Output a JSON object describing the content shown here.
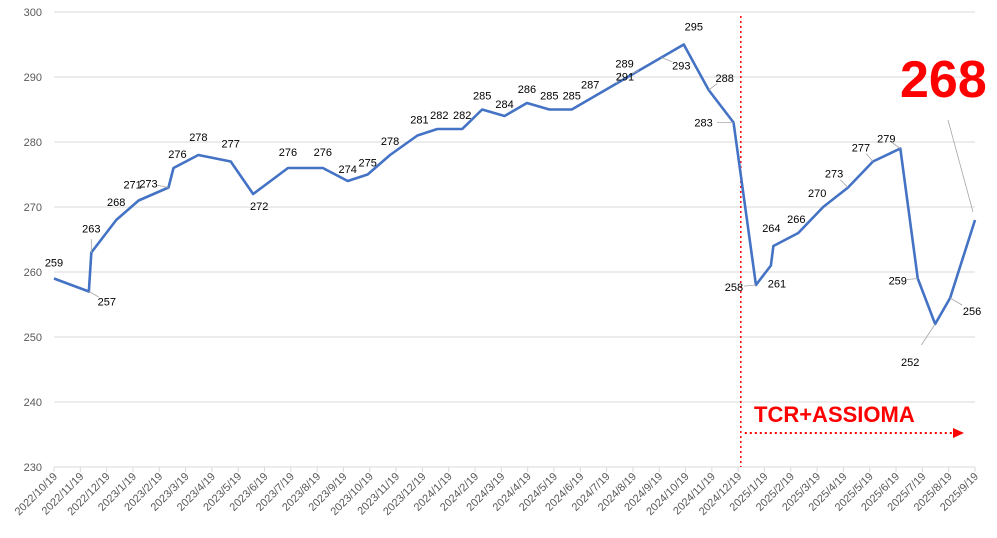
{
  "chart_data": {
    "type": "line",
    "x": [
      "2022/10/19",
      "2022/11/19",
      "2022/11/19b",
      "2022/12/19",
      "2023/1/19",
      "2023/2/19",
      "2023/2/19b",
      "2023/3/19",
      "2023/4/19",
      "2023/5/19",
      "2023/6/19",
      "2023/7/19",
      "2023/8/19",
      "2023/9/19",
      "2023/10/19",
      "2023/11/19",
      "2023/12/19",
      "2024/1/19",
      "2024/2/19",
      "2024/3/19",
      "2024/4/19",
      "2024/5/19",
      "2024/6/19",
      "2024/7/19",
      "2024/8/19",
      "2024/9/19",
      "2024/10/19",
      "2024/11/19",
      "2024/12/19",
      "2025/1/19",
      "2025/1/19b",
      "2025/2/19",
      "2025/2/19b",
      "2025/3/19",
      "2025/4/19",
      "2025/5/19",
      "2025/6/19",
      "2025/7/19",
      "2025/8/19",
      "2025/8/19b",
      "2025/9/19",
      "2025/9/19b"
    ],
    "categories": [
      "2022/10/19",
      "2022/11/19",
      "2022/12/19",
      "2023/1/19",
      "2023/2/19",
      "2023/3/19",
      "2023/4/19",
      "2023/5/19",
      "2023/6/19",
      "2023/7/19",
      "2023/8/19",
      "2023/9/19",
      "2023/10/19",
      "2023/11/19",
      "2023/12/19",
      "2024/1/19",
      "2024/2/19",
      "2024/3/19",
      "2024/4/19",
      "2024/5/19",
      "2024/6/19",
      "2024/7/19",
      "2024/8/19",
      "2024/9/19",
      "2024/10/19",
      "2024/11/19",
      "2024/12/19",
      "2025/1/19",
      "2025/2/19",
      "2025/3/19",
      "2025/4/19",
      "2025/5/19",
      "2025/6/19",
      "2025/7/19",
      "2025/8/19",
      "2025/9/19"
    ],
    "points": [
      {
        "label": "259",
        "value": 259,
        "t": 0.0
      },
      {
        "label": "257",
        "value": 257,
        "t": 1.4
      },
      {
        "label": "263",
        "value": 263,
        "t": 1.5
      },
      {
        "label": "268",
        "value": 268,
        "t": 2.5
      },
      {
        "label": "271",
        "value": 271,
        "t": 3.4
      },
      {
        "label": "273",
        "value": 273,
        "t": 4.6
      },
      {
        "label": "276",
        "value": 276,
        "t": 4.8
      },
      {
        "label": "278",
        "value": 278,
        "t": 5.8
      },
      {
        "label": "277",
        "value": 277,
        "t": 7.1
      },
      {
        "label": "272",
        "value": 272,
        "t": 8.0
      },
      {
        "label": "276",
        "value": 276,
        "t": 9.4
      },
      {
        "label": "276",
        "value": 276,
        "t": 10.8
      },
      {
        "label": "274",
        "value": 274,
        "t": 11.8
      },
      {
        "label": "275",
        "value": 275,
        "t": 12.6
      },
      {
        "label": "278",
        "value": 278,
        "t": 13.5
      },
      {
        "label": "281",
        "value": 281,
        "t": 14.6
      },
      {
        "label": "282",
        "value": 282,
        "t": 15.4
      },
      {
        "label": "282",
        "value": 282,
        "t": 16.4
      },
      {
        "label": "285",
        "value": 285,
        "t": 17.2
      },
      {
        "label": "284",
        "value": 284,
        "t": 18.1
      },
      {
        "label": "286",
        "value": 286,
        "t": 19.0
      },
      {
        "label": "285",
        "value": 285,
        "t": 19.9
      },
      {
        "label": "285",
        "value": 285,
        "t": 20.8
      },
      {
        "label": "287",
        "value": 287,
        "t": 21.7
      },
      {
        "label": "289",
        "value": 289,
        "t": 22.6
      },
      {
        "label": "291",
        "value": 291,
        "t": 23.5
      },
      {
        "label": "293",
        "value": 293,
        "t": 24.4
      },
      {
        "label": "295",
        "value": 295,
        "t": 25.3
      },
      {
        "label": "288",
        "value": 288,
        "t": 26.3
      },
      {
        "label": "283",
        "value": 283,
        "t": 27.3
      },
      {
        "label": "258",
        "value": 258,
        "t": 28.2
      },
      {
        "label": "261",
        "value": 261,
        "t": 28.8
      },
      {
        "label": "264",
        "value": 264,
        "t": 28.9
      },
      {
        "label": "266",
        "value": 266,
        "t": 29.9
      },
      {
        "label": "270",
        "value": 270,
        "t": 30.9
      },
      {
        "label": "273",
        "value": 273,
        "t": 31.9
      },
      {
        "label": "277",
        "value": 277,
        "t": 32.9
      },
      {
        "label": "279",
        "value": 279,
        "t": 34.0
      },
      {
        "label": "259",
        "value": 259,
        "t": 34.7
      },
      {
        "label": "252",
        "value": 252,
        "t": 35.4
      },
      {
        "label": "256",
        "value": 256,
        "t": 36.0
      },
      {
        "label": "268",
        "value": 268,
        "t": 37.0
      }
    ],
    "ylim": [
      230,
      300
    ],
    "yticks": [
      230,
      240,
      250,
      260,
      270,
      280,
      290,
      300
    ],
    "grid": true,
    "line_color": "#4472C4",
    "annotation_color": "#FF0000",
    "latest_value": "268",
    "event_label": "TCR+ASSIOMA",
    "event_at_category": "2024/12/19"
  }
}
